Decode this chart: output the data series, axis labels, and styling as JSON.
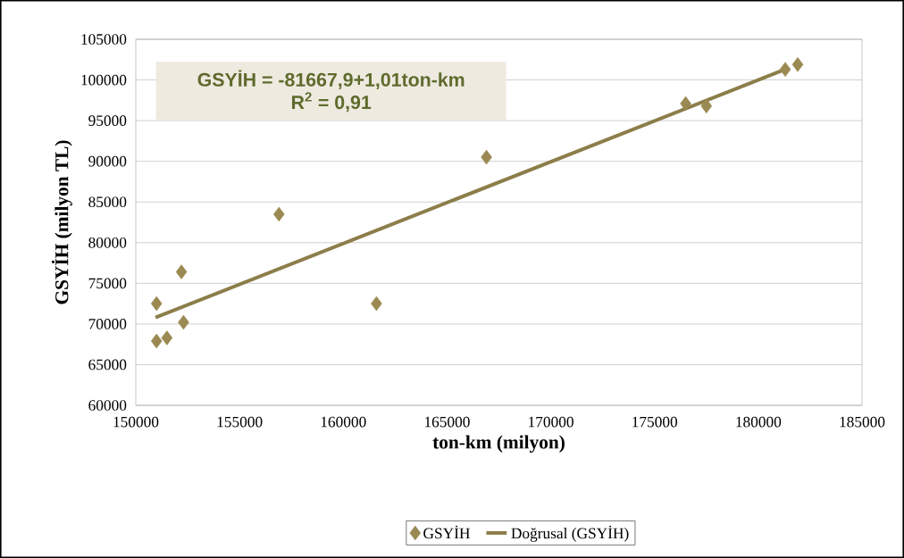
{
  "chart_data": {
    "type": "scatter",
    "xlabel": "ton-km (milyon)",
    "ylabel": "GSYİH (milyon TL)",
    "xlim": [
      150000,
      185000
    ],
    "xticks": [
      150000,
      155000,
      160000,
      165000,
      170000,
      175000,
      180000,
      185000
    ],
    "ylim": [
      60000,
      105000
    ],
    "yticks": [
      60000,
      65000,
      70000,
      75000,
      80000,
      85000,
      90000,
      95000,
      100000,
      105000
    ],
    "grid": "y",
    "legend": "bottom",
    "annotations": [
      "GSYİH = -81667,9+1,01ton-km",
      "R$^{2}$ = 0,91"
    ],
    "series": [
      {
        "name": "GSYİH",
        "marker": "diamond",
        "color": "#9a8a52",
        "x": [
          151000,
          151000,
          151500,
          152200,
          152300,
          156900,
          161600,
          166900,
          176500,
          177500,
          181300,
          181900
        ],
        "values": [
          72500,
          67900,
          68300,
          76400,
          70200,
          83500,
          72500,
          90500,
          97100,
          96800,
          101300,
          101900
        ]
      },
      {
        "name": "Doğrusal (GSYİH)",
        "type": "line",
        "marker": "none",
        "color": "#8c7e4a",
        "x": [
          150950,
          181300
        ],
        "values": [
          70800,
          101300
        ]
      }
    ]
  }
}
